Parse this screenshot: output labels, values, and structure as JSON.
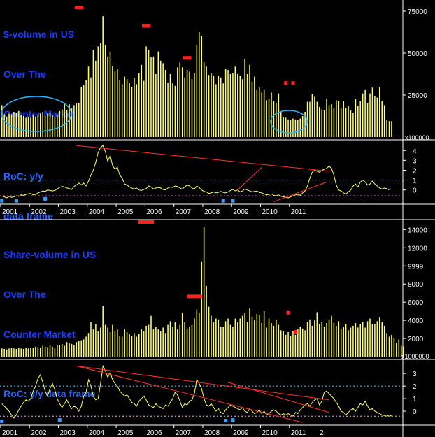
{
  "colors": {
    "background": "#000000",
    "bars": "#ffff66",
    "roc_line": "#ffff66",
    "trend": "#ff3030",
    "marker_red": "#ff2020",
    "marker_blue": "#3aa0ff",
    "circle": "#29b6ff",
    "ref_dotted": "#55c8ff",
    "zero_dotted": "#ff99ff",
    "axis": "#ffffff",
    "title": "#1a3cff"
  },
  "panels": {
    "dollar_volume": {
      "title_lines": [
        "$-volume in US",
        "Over The",
        "Counter Market"
      ],
      "multiplier": "x100000"
    },
    "dollar_roc": {
      "title_lines": [
        "RoC: y/y",
        "data frame"
      ]
    },
    "share_volume": {
      "title_lines": [
        "Share-volume in US",
        "Over The",
        "Counter Market"
      ],
      "multiplier": "x1000000"
    },
    "share_roc": {
      "title_lines": [
        "RoC: y/y data frame"
      ]
    }
  },
  "chart_data": [
    {
      "type": "bar",
      "id": "dollar_volume",
      "title": "$-volume in US Over The Counter Market",
      "x_start": "2001-01",
      "frequency": "monthly",
      "ylim": [
        0,
        80000
      ],
      "ytick_labels": [
        "75000",
        "50000",
        "25000"
      ],
      "yticks": [
        75000,
        50000,
        25000
      ],
      "values": [
        19000,
        13500,
        12000,
        14000,
        13500,
        15000,
        14500,
        15500,
        13000,
        12500,
        11500,
        12000,
        11500,
        13000,
        12000,
        13500,
        14000,
        15000,
        12500,
        14000,
        14500,
        13000,
        12000,
        13500,
        15500,
        16500,
        20000,
        16000,
        19500,
        17000,
        19000,
        20000,
        20500,
        30000,
        31000,
        34000,
        42000,
        35500,
        52000,
        45500,
        54000,
        56000,
        72000,
        55000,
        48000,
        51000,
        42500,
        39000,
        40500,
        34000,
        31500,
        36000,
        34500,
        32500,
        30000,
        35000,
        31500,
        38000,
        43000,
        33500,
        54000,
        52000,
        47500,
        48000,
        37500,
        51000,
        45500,
        44000,
        40000,
        32500,
        37500,
        32000,
        30500,
        41500,
        44500,
        41500,
        35500,
        40000,
        39000,
        34500,
        38000,
        55000,
        62500,
        60000,
        44500,
        42000,
        37000,
        38000,
        36500,
        31500,
        36500,
        35500,
        32000,
        40500,
        40000,
        37500,
        38000,
        42000,
        37500,
        36500,
        34500,
        46500,
        37500,
        43000,
        33000,
        36000,
        28000,
        29500,
        26500,
        28000,
        22000,
        22500,
        26500,
        21500,
        20500,
        26000,
        15000,
        12000,
        11500,
        10500,
        10000,
        11000,
        10500,
        10000,
        11000,
        12500,
        15000,
        21000,
        21000,
        25500,
        24000,
        21000,
        18000,
        16500,
        16000,
        22500,
        19000,
        19500,
        17000,
        22000,
        21500,
        17000,
        21500,
        17500,
        18500,
        16000,
        14500,
        22500,
        18500,
        21500,
        26000,
        28000,
        20000,
        26000,
        29500,
        24500,
        23500,
        30000,
        21500,
        19000,
        10000,
        9500,
        9500
      ],
      "markers_red": [
        {
          "x": "2003-09",
          "y": 77000
        },
        {
          "x": "2006-01",
          "y": 66000
        },
        {
          "x": "2007-06",
          "y": 47000
        },
        {
          "x": "2010-11",
          "y": 32000
        },
        {
          "x": "2011-02",
          "y": 32000
        }
      ]
    },
    {
      "type": "line",
      "id": "dollar_roc",
      "title": "RoC: y/y data frame",
      "x_start": "2001-01",
      "frequency": "monthly",
      "ylim": [
        -1.3,
        4.8
      ],
      "ytick_labels": [
        "4",
        "3",
        "2",
        "1",
        "0"
      ],
      "yticks": [
        4,
        3,
        2,
        1,
        0
      ],
      "reference_lines": [
        1,
        -0.6
      ],
      "values": [
        -0.6,
        -0.7,
        -0.8,
        -0.65,
        -0.75,
        -0.7,
        -0.6,
        -0.65,
        -0.5,
        -0.55,
        -0.45,
        -0.4,
        -0.35,
        -0.5,
        -0.45,
        -0.3,
        -0.2,
        -0.1,
        -0.15,
        0.0,
        -0.05,
        -0.1,
        -0.05,
        0.1,
        0.25,
        0.35,
        0.3,
        0.2,
        0.15,
        0.05,
        0.35,
        0.5,
        0.7,
        0.5,
        0.7,
        0.4,
        0.9,
        1.5,
        2.0,
        2.8,
        3.8,
        4.3,
        4.5,
        3.9,
        2.9,
        3.5,
        2.5,
        2.1,
        2.3,
        1.5,
        1.2,
        0.6,
        0.5,
        0.3,
        0.2,
        0.1,
        0.2,
        0.0,
        -0.05,
        0.05,
        0.15,
        0.4,
        0.3,
        0.1,
        0.2,
        0.25,
        0.2,
        0.05,
        0.0,
        0.2,
        0.3,
        0.25,
        0.4,
        0.35,
        0.2,
        0.1,
        0.3,
        0.5,
        0.4,
        0.2,
        0.1,
        0.4,
        0.25,
        0.0,
        -0.15,
        -0.2,
        -0.35,
        -0.3,
        -0.2,
        -0.3,
        -0.25,
        -0.15,
        -0.25,
        -0.3,
        -0.2,
        -0.05,
        0.05,
        -0.1,
        0.0,
        -0.2,
        -0.1,
        0.1,
        0.0,
        -0.1,
        -0.2,
        -0.15,
        -0.1,
        -0.25,
        -0.3,
        -0.4,
        -0.5,
        -0.45,
        -0.4,
        -0.55,
        -0.6,
        -0.5,
        -0.65,
        -0.7,
        -0.75,
        -0.8,
        -0.7,
        -0.6,
        -0.5,
        -0.45,
        -0.55,
        -0.3,
        -0.1,
        0.4,
        1.2,
        1.8,
        2.0,
        1.9,
        1.8,
        2.0,
        2.1,
        2.2,
        2.4,
        2.2,
        1.5,
        0.5,
        0.0,
        -0.1,
        -0.3,
        -0.4,
        -0.2,
        0.0,
        0.4,
        0.6,
        0.3,
        0.8,
        1.0,
        0.8,
        0.5,
        0.6,
        0.9,
        0.6,
        0.4,
        0.2,
        0.1,
        0.2,
        0.15,
        0.0
      ],
      "markers_blue": [
        {
          "x": "2001-01",
          "y": -1.1
        },
        {
          "x": "2001-07",
          "y": -1.1
        },
        {
          "x": "2002-07",
          "y": -0.9
        },
        {
          "x": "2008-09",
          "y": -1.1
        },
        {
          "x": "2009-01",
          "y": -1.1
        }
      ],
      "trend_lines": [
        {
          "from": {
            "x": "2003-08",
            "y": 4.5
          },
          "to": {
            "x": "2012-05",
            "y": 1.9
          }
        },
        {
          "from": {
            "x": "2009-03",
            "y": 0.0
          },
          "to": {
            "x": "2010-01",
            "y": 2.3
          }
        },
        {
          "from": {
            "x": "2010-06",
            "y": -1.2
          },
          "to": {
            "x": "2012-04",
            "y": 0.8
          }
        }
      ]
    },
    {
      "type": "bar",
      "id": "share_volume",
      "title": "Share-volume in US Over The Counter Market",
      "x_start": "2001-01",
      "frequency": "monthly",
      "ylim": [
        0,
        14800
      ],
      "ytick_labels": [
        "14000",
        "12000",
        "9999",
        "8000",
        "6000",
        "4000",
        "2000"
      ],
      "yticks": [
        14000,
        12000,
        9999,
        8000,
        6000,
        4000,
        2000
      ],
      "values": [
        900,
        850,
        800,
        900,
        950,
        900,
        850,
        1000,
        900,
        850,
        950,
        900,
        1000,
        950,
        1100,
        1050,
        1000,
        1200,
        1100,
        1050,
        1300,
        1100,
        1000,
        1250,
        1300,
        1400,
        1200,
        1600,
        1500,
        1400,
        1300,
        1600,
        1700,
        1800,
        1900,
        2200,
        2600,
        3800,
        3000,
        3600,
        2800,
        3200,
        5600,
        3500,
        3200,
        2700,
        3500,
        2800,
        3000,
        2300,
        2200,
        3000,
        2700,
        2500,
        2300,
        2600,
        2200,
        2500,
        3000,
        2800,
        3400,
        3500,
        4500,
        3000,
        3300,
        3000,
        2800,
        3200,
        2600,
        3500,
        3900,
        3300,
        3800,
        3000,
        3500,
        4800,
        3800,
        3000,
        3300,
        3500,
        4200,
        5200,
        4800,
        10500,
        14300,
        7800,
        5500,
        4500,
        3800,
        4200,
        4100,
        3300,
        3300,
        3900,
        4200,
        3500,
        3300,
        4200,
        3800,
        4200,
        4500,
        4800,
        3800,
        5300,
        4400,
        4000,
        4700,
        4600,
        3700,
        5000,
        3200,
        4200,
        3700,
        3400,
        4100,
        3500,
        2900,
        2800,
        2400,
        2700,
        2300,
        2800,
        2400,
        3000,
        3300,
        3100,
        2900,
        3800,
        4100,
        3400,
        4000,
        4900,
        3600,
        3800,
        3300,
        3700,
        4100,
        4500,
        3700,
        3400,
        3900,
        3100,
        3300,
        3600,
        2900,
        3200,
        3400,
        3700,
        3200,
        3600,
        3800,
        3200,
        3900,
        4200,
        3600,
        3600,
        3900,
        4300,
        3800,
        3400,
        2600,
        2200,
        2400,
        2000,
        1500,
        1900,
        1200,
        1100
      ],
      "markers_red": [
        {
          "x": "2006-01",
          "y": 14800
        },
        {
          "x": "2007-09",
          "y": 6600
        },
        {
          "x": "2010-12",
          "y": 4800
        },
        {
          "x": "2011-03",
          "y": 2700
        }
      ]
    },
    {
      "type": "line",
      "id": "share_roc",
      "title": "RoC: y/y data frame",
      "x_start": "2001-01",
      "frequency": "monthly",
      "ylim": [
        -1.0,
        3.9
      ],
      "ytick_labels": [
        "3",
        "2",
        "1",
        "0"
      ],
      "yticks": [
        3,
        2,
        1,
        0
      ],
      "reference_lines": [
        2,
        -0.4
      ],
      "values": [
        0.6,
        0.4,
        0.2,
        0.0,
        -0.3,
        -0.55,
        -0.3,
        0.1,
        0.4,
        0.7,
        0.9,
        0.8,
        1.0,
        1.6,
        2.0,
        2.6,
        2.9,
        2.3,
        1.6,
        1.2,
        1.8,
        2.2,
        1.7,
        1.0,
        0.6,
        0.3,
        0.6,
        0.9,
        0.5,
        0.2,
        0.4,
        0.3,
        0.0,
        0.4,
        1.2,
        1.5,
        2.5,
        2.0,
        1.2,
        0.9,
        1.0,
        2.2,
        3.6,
        3.2,
        2.7,
        3.1,
        2.5,
        2.2,
        2.0,
        1.6,
        1.4,
        1.2,
        1.3,
        1.0,
        0.7,
        0.6,
        0.4,
        0.8,
        1.0,
        1.2,
        0.9,
        0.5,
        0.4,
        0.3,
        0.6,
        0.4,
        0.3,
        0.2,
        0.5,
        0.4,
        0.7,
        1.0,
        1.5,
        1.3,
        0.8,
        0.3,
        0.6,
        0.5,
        0.8,
        0.9,
        1.4,
        2.5,
        2.2,
        1.8,
        1.0,
        0.5,
        0.4,
        0.6,
        0.3,
        0.0,
        0.2,
        -0.1,
        -0.2,
        0.1,
        0.3,
        0.5,
        0.4,
        0.3,
        0.2,
        0.1,
        0.3,
        0.0,
        -0.1,
        0.2,
        0.0,
        -0.2,
        -0.1,
        0.1,
        -0.2,
        0.0,
        -0.3,
        -0.2,
        0.0,
        0.1,
        0.0,
        -0.2,
        -0.3,
        -0.2,
        -0.3,
        -0.2,
        -0.3,
        -0.4,
        -0.1,
        -0.2,
        0.1,
        0.3,
        0.5,
        0.6,
        0.4,
        0.7,
        0.9,
        1.0,
        0.5,
        0.8,
        1.5,
        1.6,
        1.4,
        1.2,
        1.0,
        0.7,
        0.4,
        0.0,
        -0.1,
        -0.3,
        -0.1,
        0.1,
        0.2,
        0.0,
        0.3,
        0.6,
        0.5,
        0.8,
        0.4,
        0.1,
        0.2,
        0.0,
        -0.1,
        -0.2,
        -0.3,
        -0.35,
        -0.4,
        -0.3,
        -0.4
      ],
      "markers_blue": [
        {
          "x": "2001-01",
          "y": -0.8
        },
        {
          "x": "2003-01",
          "y": -0.7
        },
        {
          "x": "2008-10",
          "y": -0.75
        },
        {
          "x": "2009-01",
          "y": -0.7
        }
      ],
      "trend_lines": [
        {
          "from": {
            "x": "2003-08",
            "y": 3.6
          },
          "to": {
            "x": "2012-05",
            "y": 0.9
          }
        },
        {
          "from": {
            "x": "2003-08",
            "y": 3.6
          },
          "to": {
            "x": "2011-06",
            "y": -0.9
          }
        },
        {
          "from": {
            "x": "2008-11",
            "y": 2.3
          },
          "to": {
            "x": "2012-05",
            "y": -0.1
          }
        }
      ]
    }
  ],
  "x_axis": {
    "year_labels": [
      "2001",
      "2002",
      "2003",
      "2004",
      "2005",
      "2006",
      "2007",
      "2008",
      "2009",
      "2010",
      "2011"
    ],
    "share_roc_trailing_label": "2"
  }
}
